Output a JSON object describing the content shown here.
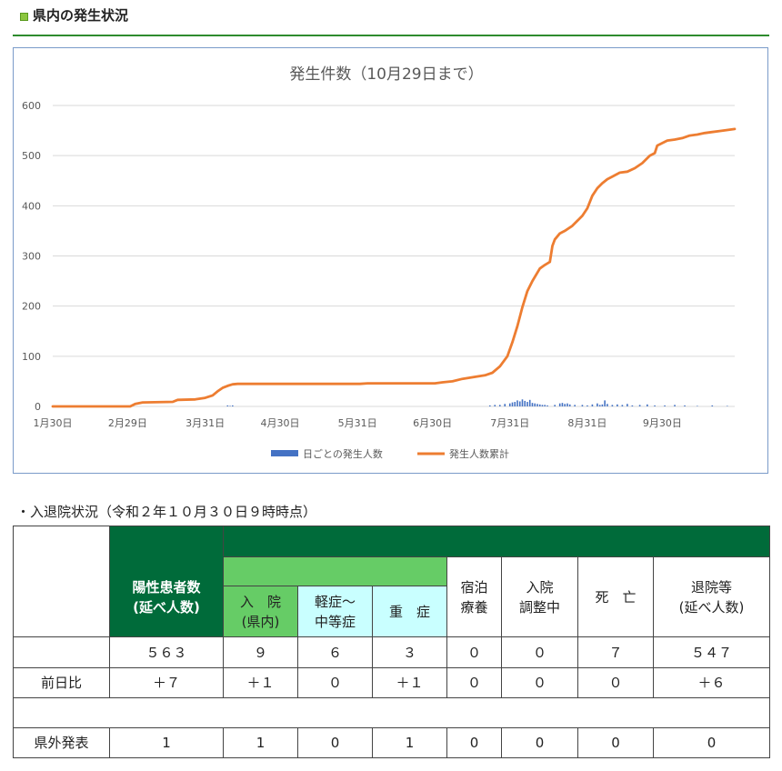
{
  "header": {
    "title": "県内の発生状況"
  },
  "chart_data": {
    "type": "line",
    "title": "発生件数（10月29日まで）",
    "ylim": [
      0,
      600
    ],
    "yticks": [
      0,
      100,
      200,
      300,
      400,
      500,
      600
    ],
    "x_range": [
      "1月30日",
      "10月29日"
    ],
    "x_ticks": [
      "1月30日",
      "2月29日",
      "3月31日",
      "4月30日",
      "5月31日",
      "6月30日",
      "7月31日",
      "8月31日",
      "9月30日"
    ],
    "grid": true,
    "legend_position": "bottom",
    "series": [
      {
        "name": "日ごとの発生人数",
        "type": "bar",
        "color": "#4472c4",
        "points": [
          [
            "4/9",
            2
          ],
          [
            "4/10",
            1
          ],
          [
            "4/11",
            2
          ],
          [
            "7/23",
            2
          ],
          [
            "7/25",
            3
          ],
          [
            "7/27",
            3
          ],
          [
            "7/29",
            5
          ],
          [
            "7/31",
            6
          ],
          [
            "8/1",
            8
          ],
          [
            "8/2",
            9
          ],
          [
            "8/3",
            12
          ],
          [
            "8/4",
            10
          ],
          [
            "8/5",
            14
          ],
          [
            "8/6",
            11
          ],
          [
            "8/7",
            9
          ],
          [
            "8/8",
            13
          ],
          [
            "8/9",
            7
          ],
          [
            "8/10",
            6
          ],
          [
            "8/11",
            5
          ],
          [
            "8/12",
            4
          ],
          [
            "8/13",
            3
          ],
          [
            "8/14",
            3
          ],
          [
            "8/15",
            2
          ],
          [
            "8/18",
            3
          ],
          [
            "8/20",
            6
          ],
          [
            "8/21",
            7
          ],
          [
            "8/22",
            5
          ],
          [
            "8/23",
            6
          ],
          [
            "8/24",
            4
          ],
          [
            "8/26",
            3
          ],
          [
            "8/29",
            3
          ],
          [
            "8/31",
            2
          ],
          [
            "9/2",
            4
          ],
          [
            "9/4",
            6
          ],
          [
            "9/5",
            3
          ],
          [
            "9/6",
            4
          ],
          [
            "9/7",
            12
          ],
          [
            "9/8",
            5
          ],
          [
            "9/10",
            3
          ],
          [
            "9/12",
            4
          ],
          [
            "9/14",
            3
          ],
          [
            "9/16",
            5
          ],
          [
            "9/18",
            2
          ],
          [
            "9/21",
            3
          ],
          [
            "9/24",
            4
          ],
          [
            "9/27",
            2
          ],
          [
            "10/1",
            2
          ],
          [
            "10/5",
            3
          ],
          [
            "10/9",
            2
          ],
          [
            "10/14",
            1
          ],
          [
            "10/20",
            2
          ],
          [
            "10/26",
            1
          ]
        ]
      },
      {
        "name": "発生人数累計",
        "type": "line",
        "color": "#ed7d31",
        "points": [
          [
            "1/30",
            0
          ],
          [
            "3/1",
            0
          ],
          [
            "3/3",
            5
          ],
          [
            "3/6",
            8
          ],
          [
            "3/18",
            9
          ],
          [
            "3/20",
            13
          ],
          [
            "3/27",
            14
          ],
          [
            "3/31",
            17
          ],
          [
            "4/3",
            22
          ],
          [
            "4/5",
            30
          ],
          [
            "4/7",
            37
          ],
          [
            "4/9",
            41
          ],
          [
            "4/11",
            44
          ],
          [
            "4/13",
            45
          ],
          [
            "6/1",
            45
          ],
          [
            "6/4",
            46
          ],
          [
            "7/1",
            46
          ],
          [
            "7/4",
            48
          ],
          [
            "7/8",
            50
          ],
          [
            "7/12",
            55
          ],
          [
            "7/17",
            59
          ],
          [
            "7/21",
            62
          ],
          [
            "7/24",
            67
          ],
          [
            "7/27",
            80
          ],
          [
            "7/30",
            100
          ],
          [
            "8/1",
            128
          ],
          [
            "8/3",
            160
          ],
          [
            "8/5",
            198
          ],
          [
            "8/7",
            230
          ],
          [
            "8/9",
            250
          ],
          [
            "8/12",
            275
          ],
          [
            "8/14",
            282
          ],
          [
            "8/16",
            288
          ],
          [
            "8/17",
            320
          ],
          [
            "8/18",
            333
          ],
          [
            "8/20",
            345
          ],
          [
            "8/22",
            350
          ],
          [
            "8/25",
            360
          ],
          [
            "8/27",
            370
          ],
          [
            "8/29",
            380
          ],
          [
            "8/31",
            395
          ],
          [
            "9/2",
            420
          ],
          [
            "9/4",
            435
          ],
          [
            "9/6",
            445
          ],
          [
            "9/8",
            453
          ],
          [
            "9/10",
            458
          ],
          [
            "9/13",
            466
          ],
          [
            "9/16",
            468
          ],
          [
            "9/19",
            475
          ],
          [
            "9/22",
            485
          ],
          [
            "9/25",
            500
          ],
          [
            "9/27",
            505
          ],
          [
            "9/28",
            520
          ],
          [
            "9/30",
            525
          ],
          [
            "10/2",
            530
          ],
          [
            "10/5",
            532
          ],
          [
            "10/8",
            535
          ],
          [
            "10/11",
            540
          ],
          [
            "10/14",
            542
          ],
          [
            "10/17",
            545
          ],
          [
            "10/20",
            547
          ],
          [
            "10/23",
            549
          ],
          [
            "10/26",
            551
          ],
          [
            "10/29",
            553
          ]
        ]
      }
    ]
  },
  "table": {
    "caption": "・入退院状況（令和２年１０月３０日９時時点）",
    "headers": {
      "positive": "陽性患者数\n(延べ人数)",
      "hospitalized": "入　院\n(県内)",
      "mild": "軽症～\n中等症",
      "severe": "重　症",
      "hotel": "宿泊\n療養",
      "adjusting": "入院\n調整中",
      "death": "死　亡",
      "discharged": "退院等\n(延べ人数)"
    },
    "totals": [
      "５６３",
      "９",
      "６",
      "３",
      "０",
      "０",
      "７",
      "５４７"
    ],
    "prev_day": {
      "label": "前日比",
      "values": [
        "＋７",
        "＋１",
        "０",
        "＋１",
        "０",
        "０",
        "０",
        "＋６"
      ]
    },
    "outside": {
      "label": "県外発表",
      "values": [
        "1",
        "1",
        "0",
        "1",
        "0",
        "0",
        "0",
        "0"
      ]
    }
  }
}
